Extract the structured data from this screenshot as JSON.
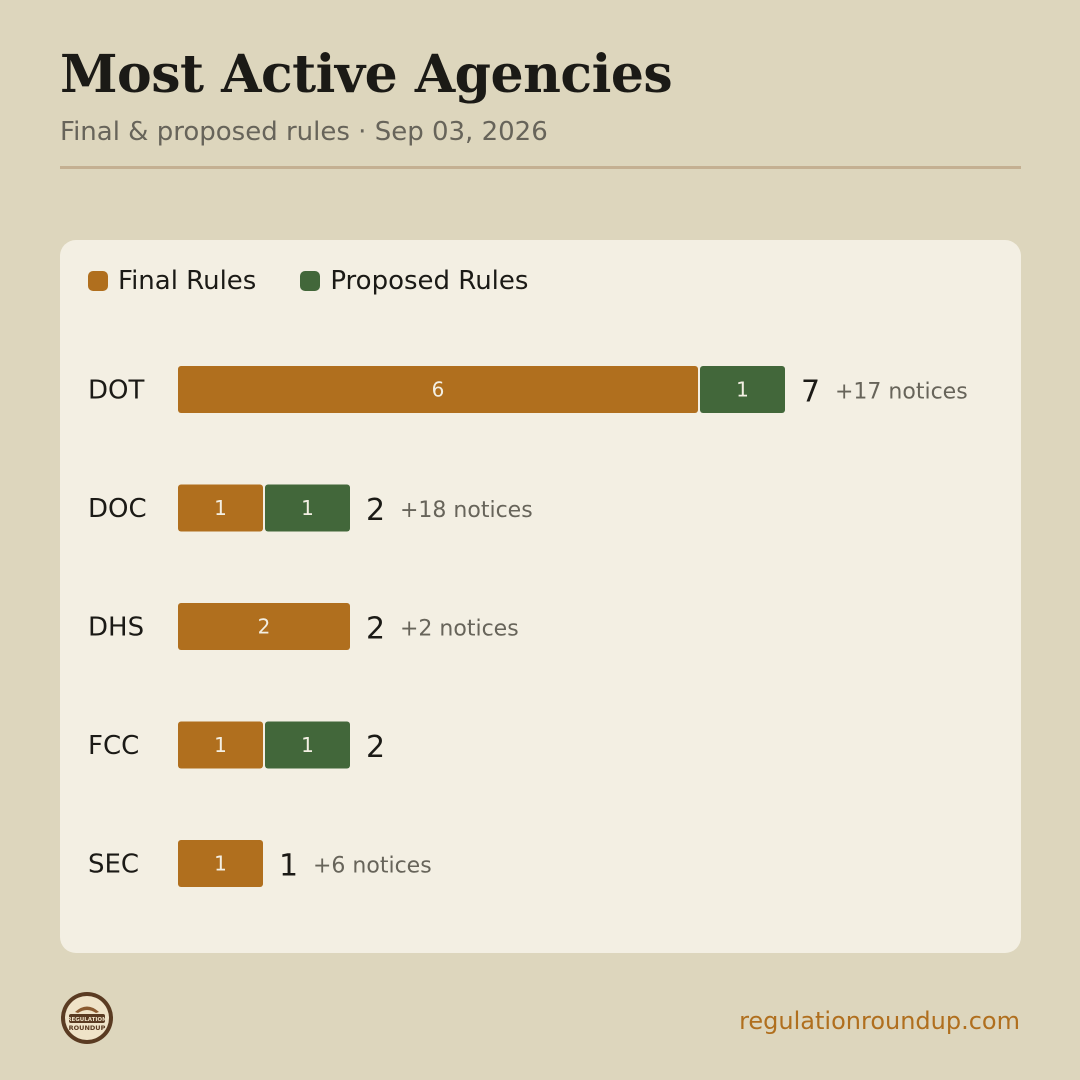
{
  "header": {
    "title": "Most Active Agencies",
    "subtitle": "Final & proposed rules · Sep 03, 2026"
  },
  "colors": {
    "final": "#b06f1e",
    "proposed": "#42673a",
    "background": "#ddd6bd",
    "card": "#f3efe3"
  },
  "chart_data": {
    "type": "bar",
    "orientation": "horizontal",
    "stacked": true,
    "categories": [
      "DOT",
      "DOC",
      "DHS",
      "FCC",
      "SEC"
    ],
    "series": [
      {
        "name": "Final Rules",
        "values": [
          6,
          1,
          2,
          1,
          1
        ]
      },
      {
        "name": "Proposed Rules",
        "values": [
          1,
          1,
          0,
          1,
          0
        ]
      }
    ],
    "totals": [
      "7",
      "2",
      "2",
      "2",
      "1"
    ],
    "notices": [
      "+17 notices",
      "+18 notices",
      "+2 notices",
      "",
      "+6 notices"
    ],
    "legend_position": "top-left",
    "grid": false
  },
  "footer": {
    "logo_text": "REGULATION ROUNDUP",
    "url": "regulationroundup.com"
  }
}
